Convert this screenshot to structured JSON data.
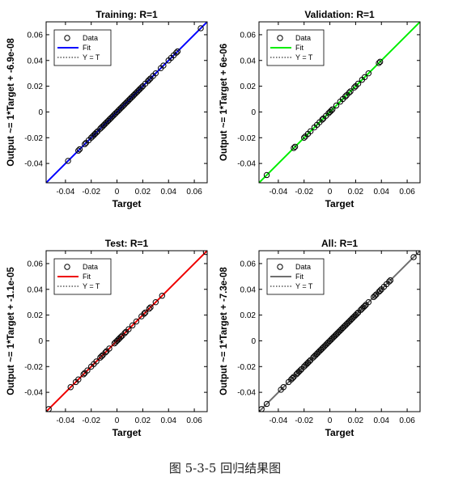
{
  "figure": {
    "caption": "图 5-3-5 回归结果图"
  },
  "legend_labels": {
    "data": "Data",
    "fit": "Fit",
    "ident": "Y = T"
  },
  "chart_data": [
    {
      "type": "scatter",
      "title": "Training: R=1",
      "xlabel": "Target",
      "ylabel": "Output ~= 1*Target + -6.9e-08",
      "xlim": [
        -0.055,
        0.07
      ],
      "ylim": [
        -0.055,
        0.07
      ],
      "xticks": [
        -0.04,
        -0.02,
        0,
        0.02,
        0.04,
        0.06
      ],
      "yticks": [
        -0.04,
        -0.02,
        0,
        0.02,
        0.04,
        0.06
      ],
      "fit_color": "#0000ff",
      "legend_position": "top-left",
      "points": [
        -0.038,
        -0.03,
        -0.029,
        -0.025,
        -0.024,
        -0.022,
        -0.02,
        -0.019,
        -0.018,
        -0.017,
        -0.016,
        -0.015,
        -0.013,
        -0.012,
        -0.011,
        -0.01,
        -0.009,
        -0.008,
        -0.007,
        -0.006,
        -0.005,
        -0.004,
        -0.003,
        -0.002,
        -0.001,
        0,
        0.001,
        0.002,
        0.003,
        0.004,
        0.005,
        0.006,
        0.007,
        0.008,
        0.009,
        0.01,
        0.011,
        0.012,
        0.013,
        0.014,
        0.015,
        0.016,
        0.017,
        0.018,
        0.019,
        0.02,
        0.022,
        0.024,
        0.025,
        0.026,
        0.028,
        0.03,
        0.034,
        0.036,
        0.04,
        0.042,
        0.044,
        0.046,
        0.047,
        0.065
      ]
    },
    {
      "type": "scatter",
      "title": "Validation: R=1",
      "xlabel": "Target",
      "ylabel": "Output ~= 1*Target + 6e-06",
      "xlim": [
        -0.055,
        0.07
      ],
      "ylim": [
        -0.055,
        0.07
      ],
      "xticks": [
        -0.04,
        -0.02,
        0,
        0.02,
        0.04,
        0.06
      ],
      "yticks": [
        -0.04,
        -0.02,
        0,
        0.02,
        0.04,
        0.06
      ],
      "fit_color": "#00ee00",
      "legend_position": "top-left",
      "points": [
        -0.049,
        -0.028,
        -0.027,
        -0.02,
        -0.019,
        -0.017,
        -0.015,
        -0.012,
        -0.01,
        -0.008,
        -0.006,
        -0.005,
        -0.003,
        -0.001,
        0,
        0.001,
        0.002,
        0.005,
        0.008,
        0.01,
        0.012,
        0.013,
        0.015,
        0.016,
        0.019,
        0.02,
        0.022,
        0.025,
        0.027,
        0.03,
        0.038,
        0.039
      ]
    },
    {
      "type": "scatter",
      "title": "Test: R=1",
      "xlabel": "Target",
      "ylabel": "Output ~= 1*Target + -1.1e-05",
      "xlim": [
        -0.055,
        0.07
      ],
      "ylim": [
        -0.055,
        0.07
      ],
      "xticks": [
        -0.04,
        -0.02,
        0,
        0.02,
        0.04,
        0.06
      ],
      "yticks": [
        -0.04,
        -0.02,
        0,
        0.02,
        0.04,
        0.06
      ],
      "fit_color": "#ee0000",
      "legend_position": "top-left",
      "points": [
        -0.053,
        -0.036,
        -0.032,
        -0.03,
        -0.026,
        -0.025,
        -0.023,
        -0.02,
        -0.018,
        -0.016,
        -0.013,
        -0.012,
        -0.011,
        -0.009,
        -0.008,
        -0.006,
        -0.002,
        -0.001,
        0,
        0.001,
        0.002,
        0.003,
        0.004,
        0.006,
        0.007,
        0.009,
        0.012,
        0.015,
        0.019,
        0.021,
        0.022,
        0.025,
        0.026,
        0.03,
        0.035,
        0.069
      ]
    },
    {
      "type": "scatter",
      "title": "All: R=1",
      "xlabel": "Target",
      "ylabel": "Output ~= 1*Target + -7.3e-08",
      "xlim": [
        -0.055,
        0.07
      ],
      "ylim": [
        -0.055,
        0.07
      ],
      "xticks": [
        -0.04,
        -0.02,
        0,
        0.02,
        0.04,
        0.06
      ],
      "yticks": [
        -0.04,
        -0.02,
        0,
        0.02,
        0.04,
        0.06
      ],
      "fit_color": "#6e6e6e",
      "legend_position": "top-left",
      "points": [
        -0.053,
        -0.049,
        -0.038,
        -0.036,
        -0.032,
        -0.03,
        -0.029,
        -0.028,
        -0.026,
        -0.025,
        -0.024,
        -0.023,
        -0.022,
        -0.02,
        -0.019,
        -0.018,
        -0.017,
        -0.016,
        -0.015,
        -0.013,
        -0.012,
        -0.011,
        -0.01,
        -0.009,
        -0.008,
        -0.007,
        -0.006,
        -0.005,
        -0.004,
        -0.003,
        -0.002,
        -0.001,
        0,
        0.001,
        0.002,
        0.003,
        0.004,
        0.005,
        0.006,
        0.007,
        0.008,
        0.009,
        0.01,
        0.011,
        0.012,
        0.013,
        0.014,
        0.015,
        0.016,
        0.017,
        0.018,
        0.019,
        0.02,
        0.021,
        0.022,
        0.024,
        0.025,
        0.026,
        0.027,
        0.028,
        0.03,
        0.034,
        0.035,
        0.036,
        0.038,
        0.039,
        0.04,
        0.042,
        0.044,
        0.046,
        0.047,
        0.065,
        0.069
      ]
    }
  ]
}
